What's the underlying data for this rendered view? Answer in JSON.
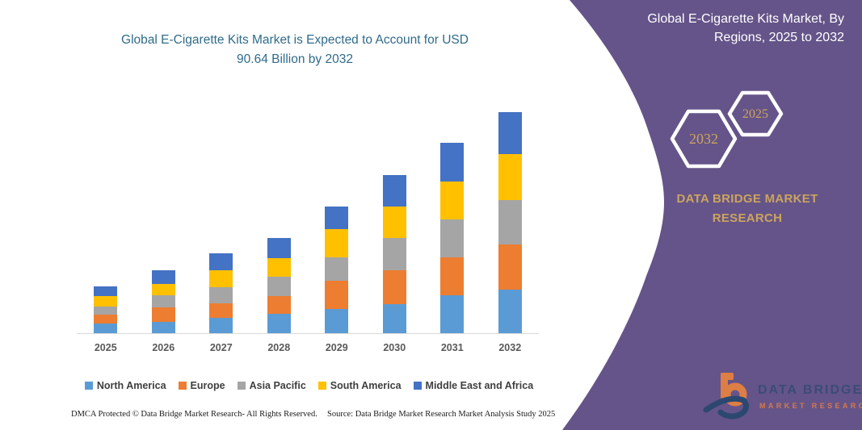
{
  "page": {
    "background_color": "#ffffff"
  },
  "chart_title": {
    "line1": "Global E-Cigarette Kits Market is Expected to Account for USD",
    "line2": "90.64 Billion by 2032",
    "color": "#2f6b8a"
  },
  "chart_data": {
    "type": "bar",
    "stacked": true,
    "title": "Global E-Cigarette Kits Market is Expected to Account for USD 90.64 Billion by 2032",
    "unit": "USD Billion",
    "categories": [
      "2025",
      "2026",
      "2027",
      "2028",
      "2029",
      "2030",
      "2031",
      "2032"
    ],
    "series": [
      {
        "name": "North America",
        "color": "#5b9bd5",
        "values": [
          3.9,
          4.5,
          6.2,
          8.0,
          9.9,
          11.9,
          15.4,
          17.9
        ]
      },
      {
        "name": "Europe",
        "color": "#ed7d31",
        "values": [
          3.7,
          6.0,
          6.0,
          7.3,
          11.5,
          13.7,
          15.5,
          18.3
        ]
      },
      {
        "name": "Asia Pacific",
        "color": "#a5a5a5",
        "values": [
          3.3,
          5.1,
          6.6,
          7.7,
          9.7,
          13.4,
          15.6,
          18.2
        ]
      },
      {
        "name": "South America",
        "color": "#ffc000",
        "values": [
          4.4,
          4.7,
          6.8,
          7.7,
          11.5,
          12.9,
          15.6,
          18.9
        ]
      },
      {
        "name": "Middle East and Africa",
        "color": "#4472c4",
        "values": [
          3.9,
          5.5,
          7.1,
          8.2,
          9.1,
          12.8,
          15.7,
          17.3
        ]
      }
    ],
    "totals": [
      19.2,
      25.8,
      32.7,
      38.9,
      51.7,
      64.7,
      77.8,
      90.64
    ],
    "ylim": [
      0,
      95
    ],
    "grid": false,
    "y_axis_visible": false,
    "legend_position": "bottom"
  },
  "right_panel": {
    "background": "#655489",
    "title_line1": "Global E-Cigarette Kits Market, By",
    "title_line2": "Regions, 2025 to 2032",
    "hexagon_year_left": "2032",
    "hexagon_year_right": "2025",
    "accent_text_color": "#cba45f",
    "brand_line1": "DATA BRIDGE MARKET",
    "brand_line2": "RESEARCH"
  },
  "logo": {
    "text_primary": "DATA BRIDGE",
    "text_secondary": "MARKET RESEARCH",
    "navy": "#27476e",
    "orange": "#e8823f"
  },
  "footer": {
    "dmca": "DMCA Protected © Data Bridge Market Research-  All Rights Reserved.",
    "source": "Source: Data Bridge Market Research  Market Analysis Study 2025"
  }
}
